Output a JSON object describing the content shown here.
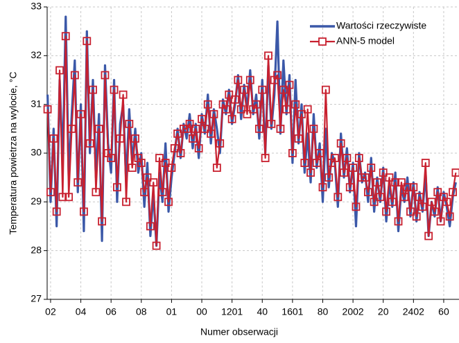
{
  "chart_data": {
    "type": "line",
    "xlabel": "Numer obserwacji",
    "ylabel": "Temperatura powietrza na wylocie, °C",
    "categories": [
      null,
      "02",
      null,
      null,
      null,
      null,
      null,
      null,
      null,
      null,
      null,
      "04",
      null,
      null,
      null,
      null,
      null,
      null,
      null,
      null,
      null,
      "06",
      null,
      null,
      null,
      null,
      null,
      null,
      null,
      null,
      null,
      "08",
      null,
      null,
      null,
      null,
      null,
      null,
      null,
      null,
      null,
      "01",
      null,
      null,
      null,
      null,
      null,
      null,
      null,
      null,
      null,
      "00",
      null,
      null,
      null,
      null,
      null,
      null,
      null,
      null,
      null,
      "1201",
      null,
      null,
      null,
      null,
      null,
      null,
      null,
      null,
      null,
      "40",
      null,
      null,
      null,
      null,
      null,
      null,
      null,
      null,
      null,
      "1601",
      null,
      null,
      null,
      null,
      null,
      null,
      null,
      null,
      null,
      "80",
      null,
      null,
      null,
      null,
      null,
      null,
      null,
      null,
      null,
      "2002",
      null,
      null,
      null,
      null,
      null,
      null,
      null,
      null,
      null,
      "20",
      null,
      null,
      null,
      null,
      null,
      null,
      null,
      null,
      null,
      "2402",
      null,
      null,
      null,
      null,
      null,
      null,
      null,
      null,
      null,
      "60",
      null,
      null,
      null,
      null
    ],
    "series": [
      {
        "name": "Wartości rzeczywiste",
        "color": "#3b58a8",
        "marker": "none",
        "values": [
          31.2,
          29.0,
          30.5,
          28.5,
          31.5,
          29.8,
          32.8,
          29.5,
          30.8,
          31.9,
          29.2,
          31.0,
          28.4,
          32.5,
          30.0,
          31.5,
          29.5,
          30.8,
          28.2,
          31.8,
          30.2,
          29.6,
          31.5,
          29.0,
          30.6,
          31.0,
          29.4,
          30.9,
          29.8,
          30.5,
          29.6,
          30.0,
          28.9,
          29.8,
          28.3,
          29.2,
          28.1,
          29.6,
          29.0,
          30.2,
          28.8,
          29.5,
          30.0,
          30.5,
          29.9,
          30.6,
          30.3,
          30.8,
          30.1,
          30.6,
          29.9,
          30.8,
          30.4,
          31.2,
          30.2,
          30.9,
          30.5,
          30.0,
          31.1,
          30.8,
          31.3,
          30.6,
          31.0,
          31.6,
          30.7,
          31.4,
          30.9,
          31.7,
          30.8,
          31.2,
          30.3,
          31.5,
          30.0,
          31.8,
          30.5,
          31.2,
          32.7,
          30.4,
          31.9,
          30.8,
          31.6,
          29.8,
          31.5,
          30.2,
          31.0,
          29.6,
          30.4,
          29.4,
          30.8,
          29.7,
          30.2,
          29.0,
          30.5,
          29.3,
          30.0,
          29.8,
          28.9,
          30.4,
          29.5,
          30.1,
          29.2,
          29.8,
          28.5,
          30.0,
          29.4,
          29.6,
          29.0,
          29.9,
          28.8,
          29.5,
          29.0,
          29.7,
          28.6,
          29.4,
          28.9,
          29.6,
          28.4,
          29.3,
          29.0,
          29.5,
          28.7,
          29.4,
          28.6,
          29.2,
          28.8,
          29.6,
          28.3,
          29.0,
          28.7,
          29.3,
          28.6,
          29.2,
          28.9,
          28.5,
          29.1,
          29.4
        ]
      },
      {
        "name": "ANN-5 model",
        "color": "#c8202f",
        "marker": "square",
        "values": [
          30.9,
          29.2,
          30.3,
          28.8,
          31.7,
          29.1,
          32.4,
          29.1,
          30.5,
          31.6,
          29.4,
          30.8,
          28.8,
          32.3,
          30.2,
          31.3,
          29.2,
          30.5,
          28.6,
          31.6,
          30.0,
          29.9,
          31.3,
          29.3,
          30.3,
          31.2,
          29.0,
          30.6,
          29.7,
          30.3,
          29.9,
          29.8,
          29.2,
          29.5,
          28.5,
          29.4,
          28.1,
          29.9,
          29.2,
          29.8,
          29.0,
          29.7,
          30.1,
          30.4,
          30.0,
          30.5,
          30.5,
          30.6,
          30.3,
          30.5,
          30.1,
          30.7,
          30.5,
          31.0,
          30.4,
          30.8,
          29.7,
          30.2,
          31.0,
          30.9,
          31.2,
          30.7,
          31.1,
          31.5,
          30.9,
          31.3,
          30.8,
          31.5,
          30.9,
          31.0,
          30.5,
          31.3,
          29.9,
          32.0,
          30.6,
          31.5,
          31.6,
          30.5,
          31.3,
          30.9,
          31.4,
          30.0,
          31.0,
          30.3,
          30.8,
          29.8,
          30.9,
          29.6,
          30.5,
          29.8,
          30.0,
          29.3,
          31.3,
          29.5,
          29.8,
          29.9,
          29.1,
          30.2,
          29.6,
          29.9,
          29.3,
          29.7,
          28.9,
          29.9,
          29.5,
          29.5,
          29.2,
          29.7,
          29.0,
          29.4,
          29.1,
          29.6,
          28.8,
          29.5,
          29.0,
          29.4,
          28.6,
          29.4,
          29.1,
          29.3,
          28.8,
          29.3,
          28.7,
          29.1,
          28.9,
          29.8,
          28.3,
          29.0,
          28.8,
          29.2,
          28.6,
          29.1,
          29.0,
          28.7,
          29.2,
          29.6
        ]
      }
    ],
    "ylim": [
      27,
      33
    ],
    "yticks": [
      27,
      28,
      29,
      30,
      31,
      32,
      33
    ],
    "grid": true,
    "legend": "top-right"
  }
}
